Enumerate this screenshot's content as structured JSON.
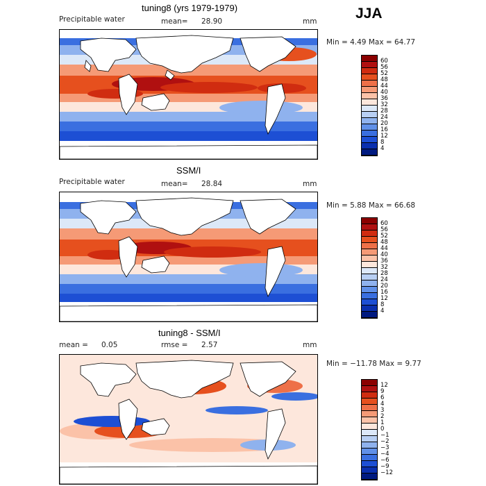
{
  "season": "JJA",
  "panels": [
    {
      "title": "tuning8 (yrs 1979-1979)",
      "variable": "Precipitable water",
      "stat_label": "mean=",
      "stat_value": "28.90",
      "units": "mm",
      "range": "Min =    4.49 Max =   64.77",
      "colorbar_ticks": [
        "60",
        "56",
        "52",
        "48",
        "44",
        "40",
        "36",
        "32",
        "28",
        "24",
        "20",
        "16",
        "12",
        "8",
        "4"
      ],
      "colors": [
        "#8b0000",
        "#b01010",
        "#d02c10",
        "#e6501e",
        "#ee7048",
        "#f59a76",
        "#fbc2a8",
        "#fde7dc",
        "#dce8f8",
        "#b8cff3",
        "#8fb2ee",
        "#6090e8",
        "#3a6fe0",
        "#1d4fd4",
        "#0a2fae",
        "#001a80"
      ]
    },
    {
      "title": "SSM/I",
      "variable": "Precipitable water",
      "stat_label": "mean=",
      "stat_value": "28.84",
      "units": "mm",
      "range": "Min =    5.88 Max =   66.68",
      "colorbar_ticks": [
        "60",
        "56",
        "52",
        "48",
        "44",
        "40",
        "36",
        "32",
        "28",
        "24",
        "20",
        "16",
        "12",
        "8",
        "4"
      ],
      "colors": [
        "#8b0000",
        "#b01010",
        "#d02c10",
        "#e6501e",
        "#ee7048",
        "#f59a76",
        "#fbc2a8",
        "#fde7dc",
        "#dce8f8",
        "#b8cff3",
        "#8fb2ee",
        "#6090e8",
        "#3a6fe0",
        "#1d4fd4",
        "#0a2fae",
        "#001a80"
      ]
    },
    {
      "title": "tuning8 - SSM/I",
      "stat1_label": "mean =",
      "stat1_value": "0.05",
      "stat2_label": "rmse =",
      "stat2_value": "2.57",
      "units": "mm",
      "range": "Min = −11.78 Max =    9.77",
      "colorbar_ticks": [
        "12",
        "9",
        "6",
        "4",
        "3",
        "2",
        "1",
        "0",
        "−1",
        "−2",
        "−3",
        "−4",
        "−6",
        "−9",
        "−12"
      ],
      "colors": [
        "#8b0000",
        "#b01010",
        "#d02c10",
        "#e6501e",
        "#ee7048",
        "#f59a76",
        "#fbc2a8",
        "#fde7dc",
        "#dce8f8",
        "#b8cff3",
        "#8fb2ee",
        "#6090e8",
        "#3a6fe0",
        "#1d4fd4",
        "#0a2fae",
        "#001a80"
      ]
    }
  ]
}
